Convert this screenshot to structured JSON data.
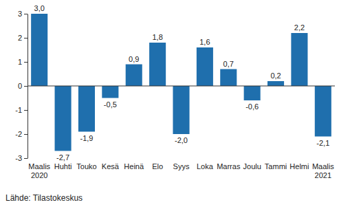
{
  "chart_data": {
    "type": "bar",
    "categories": [
      "Maalis 2020",
      "Huhti",
      "Touko",
      "Kesä",
      "Heinä",
      "Elo",
      "Syys",
      "Loka",
      "Marras",
      "Joulu",
      "Tammi",
      "Helmi",
      "Maalis 2021"
    ],
    "values": [
      3.0,
      -2.7,
      -1.9,
      -0.5,
      0.9,
      1.8,
      -2.0,
      1.6,
      0.7,
      -0.6,
      0.2,
      2.2,
      -2.1
    ],
    "value_labels": [
      "3,0",
      "-2,7",
      "-1,9",
      "-0,5",
      "0,9",
      "1,8",
      "-2,0",
      "1,6",
      "0,7",
      "-0,6",
      "0,2",
      "2,2",
      "-2,1"
    ],
    "data_labels": true,
    "color": "#1f6fad",
    "ylim": [
      -3,
      3
    ],
    "yticks": [
      -3,
      -2,
      -1,
      0,
      1,
      2,
      3
    ],
    "grid": false,
    "source": "Lähde: Tilastokeskus"
  }
}
